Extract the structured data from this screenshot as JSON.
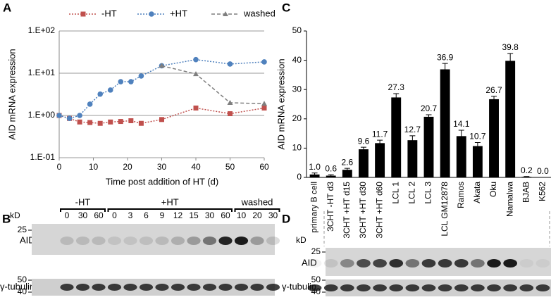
{
  "chart_data": [
    {
      "type": "line",
      "panel": "A",
      "legend": "top",
      "ylabel": "AID mRNA expression",
      "xlabel": "Time post addition of HT (d)",
      "x": [
        0,
        3,
        6,
        9,
        12,
        15,
        18,
        21,
        24,
        30,
        40,
        50,
        60
      ],
      "series": [
        {
          "name": "-HT",
          "color": "#c0504d",
          "marker": "square",
          "line_style": "dotted",
          "values": [
            1.0,
            0.85,
            0.7,
            0.68,
            0.65,
            0.7,
            0.72,
            0.75,
            0.65,
            0.8,
            1.5,
            1.1,
            1.5
          ]
        },
        {
          "name": "+HT",
          "color": "#4f81bd",
          "marker": "circle",
          "line_style": "dotted",
          "values": [
            1.0,
            0.85,
            1.0,
            1.85,
            3.2,
            4.0,
            6.3,
            6.3,
            8.6,
            15,
            21,
            16.5,
            18.5
          ]
        },
        {
          "name": "washed",
          "color": "#7f7f7f",
          "marker": "triangle",
          "line_style": "dashed",
          "values": [
            null,
            null,
            null,
            null,
            null,
            null,
            null,
            null,
            null,
            15,
            9.6,
            2.0,
            1.9
          ]
        }
      ],
      "log_y": true,
      "grid": true,
      "xlim": [
        0,
        60
      ],
      "xticks": [
        0,
        10,
        20,
        30,
        40,
        50,
        60
      ],
      "ylim": [
        0.1,
        100
      ],
      "yticks": [
        {
          "value": 0.1,
          "label": "1.E-01"
        },
        {
          "value": 1,
          "label": "1.E+00"
        },
        {
          "value": 10,
          "label": "1.E+01"
        },
        {
          "value": 100,
          "label": "1.E+02"
        }
      ]
    },
    {
      "type": "bar",
      "panel": "C",
      "ylabel": "AID mRNA expression",
      "color": "#000000",
      "categories": [
        "primary B cell",
        "3CHT -HT d3",
        "3CHT +HT d15",
        "3CHT +HT d30",
        "3CHT +HT d60",
        "LCL 1",
        "LCL 2",
        "LCL 3",
        "LCL GM12878",
        "Ramos",
        "Akata",
        "Oku",
        "Namalwa",
        "BJAB",
        "K562"
      ],
      "values": [
        1.0,
        0.6,
        2.6,
        9.6,
        11.7,
        27.3,
        12.7,
        20.7,
        36.9,
        14.1,
        10.7,
        26.7,
        39.8,
        0.2,
        0.0
      ],
      "value_labels": [
        "1.0",
        "0.6",
        "2.6",
        "9.6",
        "11.7",
        "27.3",
        "12.7",
        "20.7",
        "36.9",
        "14.1",
        "10.7",
        "26.7",
        "39.8",
        "0.2",
        "0.0"
      ],
      "errors": [
        0.5,
        0.3,
        0.5,
        0.7,
        1.0,
        1.3,
        1.5,
        0.7,
        2.0,
        2.0,
        1.2,
        1.0,
        2.5,
        0.1,
        0.0
      ],
      "ylim": [
        0,
        50
      ],
      "yticks": [
        0,
        10,
        20,
        30,
        40,
        50
      ]
    },
    {
      "type": "blot",
      "panel": "B",
      "kd_label": "kD",
      "size_markers": [
        25,
        50,
        40
      ],
      "rows": [
        "AID",
        "γ-tubulin"
      ],
      "groups": [
        {
          "name": "-HT",
          "lanes": [
            0,
            30,
            60
          ]
        },
        {
          "name": "+HT",
          "lanes": [
            0,
            3,
            6,
            9,
            12,
            15,
            30,
            60
          ]
        },
        {
          "name": "washed",
          "lanes": [
            10,
            20,
            30
          ]
        }
      ]
    },
    {
      "type": "blot",
      "panel": "D",
      "kd_label": "kD",
      "size_markers": [
        25,
        50,
        40
      ],
      "rows": [
        "AID",
        "γ-tubulin"
      ]
    }
  ]
}
